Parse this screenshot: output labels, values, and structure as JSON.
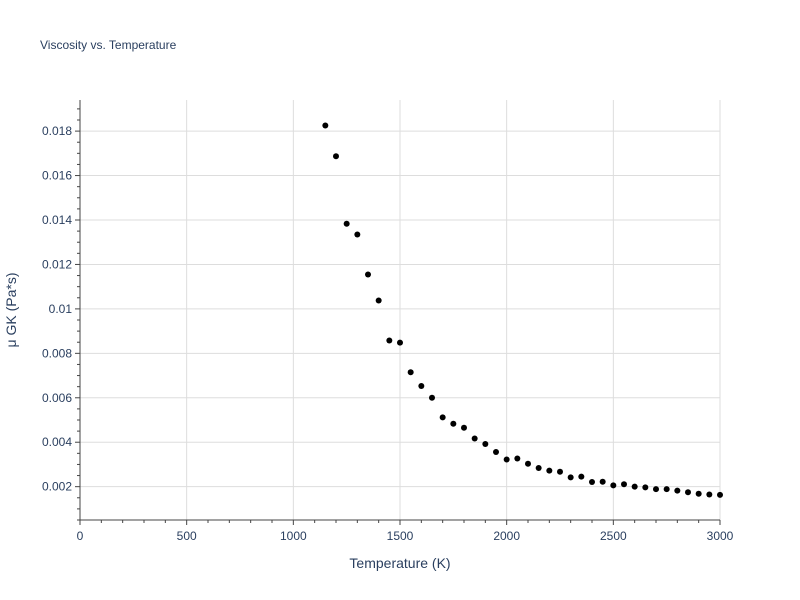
{
  "chart_data": {
    "type": "scatter",
    "title": "Viscosity vs. Temperature",
    "xlabel": "Temperature (K)",
    "ylabel": "μ GK (Pa*s)",
    "xlim": [
      0,
      3000
    ],
    "ylim": [
      0.0005,
      0.0194
    ],
    "x_ticks": [
      0,
      500,
      1000,
      1500,
      2000,
      2500,
      3000
    ],
    "x_tick_labels": [
      "0",
      "500",
      "1000",
      "1500",
      "2000",
      "2500",
      "3000"
    ],
    "y_ticks": [
      0.002,
      0.004,
      0.006,
      0.008,
      0.01,
      0.012,
      0.014,
      0.016,
      0.018
    ],
    "y_tick_labels": [
      "0.002",
      "0.004",
      "0.006",
      "0.008",
      "0.01",
      "0.012",
      "0.014",
      "0.016",
      "0.018"
    ],
    "grid": true,
    "marker_color": "#000000",
    "x": [
      1150,
      1200,
      1250,
      1300,
      1350,
      1400,
      1450,
      1500,
      1550,
      1600,
      1650,
      1700,
      1750,
      1800,
      1850,
      1900,
      1950,
      2000,
      2050,
      2100,
      2150,
      2200,
      2250,
      2300,
      2350,
      2400,
      2450,
      2500,
      2550,
      2600,
      2650,
      2700,
      2750,
      2800,
      2850,
      2900,
      2950,
      3000
    ],
    "y": [
      0.01825,
      0.01687,
      0.01383,
      0.01335,
      0.01155,
      0.01038,
      0.00858,
      0.00848,
      0.00715,
      0.00653,
      0.006,
      0.00512,
      0.00483,
      0.00465,
      0.00417,
      0.00392,
      0.00356,
      0.00322,
      0.00327,
      0.00303,
      0.00284,
      0.00272,
      0.00267,
      0.00242,
      0.00245,
      0.00221,
      0.00222,
      0.00206,
      0.00211,
      0.002,
      0.00197,
      0.00189,
      0.00189,
      0.00182,
      0.00175,
      0.00168,
      0.00165,
      0.00163
    ]
  }
}
